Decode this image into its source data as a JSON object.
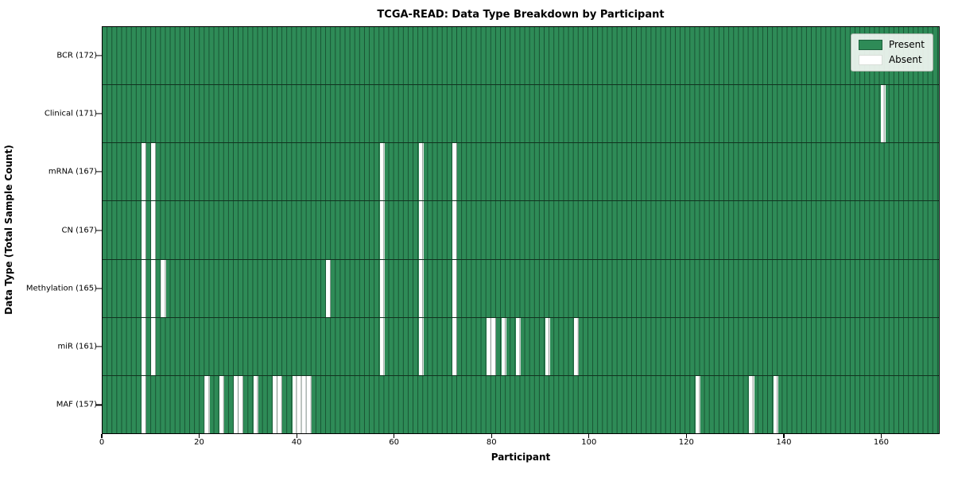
{
  "chart_data": {
    "type": "heatmap",
    "title": "TCGA-READ: Data Type Breakdown by Participant",
    "xlabel": "Participant",
    "ylabel": "Data Type (Total Sample Count)",
    "n_participants": 172,
    "xlim": [
      0,
      172
    ],
    "x_ticks": [
      0,
      20,
      40,
      60,
      80,
      100,
      120,
      140,
      160
    ],
    "grid": "bar-edge gridlines on, row separator lines on",
    "legend_position": "upper right",
    "legend": [
      {
        "label": "Present",
        "color": "#2e8b57"
      },
      {
        "label": "Absent",
        "color": "#ffffff"
      }
    ],
    "colors": {
      "present": "#2e8b57",
      "absent": "#ffffff",
      "bar_edge": "rgba(5,35,20,0.55)",
      "row_separator": "#11321f",
      "frame": "#000000",
      "legend_bg": "rgba(242,246,242,0.92)"
    },
    "rows": [
      {
        "label": "BCR (172)",
        "data_type": "BCR",
        "count": 172,
        "absent_participants": []
      },
      {
        "label": "Clinical (171)",
        "data_type": "Clinical",
        "count": 171,
        "absent_participants": [
          160
        ]
      },
      {
        "label": "mRNA (167)",
        "data_type": "mRNA",
        "count": 167,
        "absent_participants": [
          8,
          10,
          57,
          65,
          72
        ]
      },
      {
        "label": "CN (167)",
        "data_type": "CN",
        "count": 167,
        "absent_participants": [
          8,
          10,
          57,
          65,
          72
        ]
      },
      {
        "label": "Methylation (165)",
        "data_type": "Methylation",
        "count": 165,
        "absent_participants": [
          8,
          10,
          12,
          46,
          57,
          65,
          72
        ]
      },
      {
        "label": "miR (161)",
        "data_type": "miR",
        "count": 161,
        "absent_participants": [
          8,
          10,
          57,
          65,
          72,
          79,
          80,
          82,
          85,
          91,
          97
        ]
      },
      {
        "label": "MAF (157)",
        "data_type": "MAF",
        "count": 157,
        "absent_participants": [
          8,
          21,
          24,
          27,
          28,
          31,
          35,
          36,
          39,
          40,
          41,
          42,
          122,
          133,
          138
        ]
      }
    ]
  }
}
